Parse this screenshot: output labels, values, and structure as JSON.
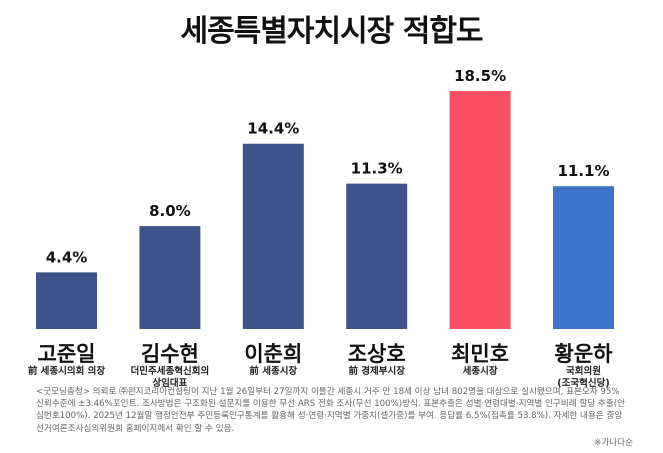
{
  "chart_data": {
    "type": "bar",
    "title": "세종특별자치시장 적합도",
    "categories": [
      "고준일",
      "김수현",
      "이춘희",
      "조상호",
      "최민호",
      "황운하"
    ],
    "subtitles": [
      "前 세종시의회 의장",
      "더민주세종혁신회의\n상임대표",
      "前 세종시장",
      "前 경제부시장",
      "세종시장",
      "국회의원\n(조국혁신당)"
    ],
    "values": [
      4.4,
      8.0,
      14.4,
      11.3,
      18.5,
      11.1
    ],
    "value_labels": [
      "4.4%",
      "8.0%",
      "14.4%",
      "11.3%",
      "18.5%",
      "11.1%"
    ],
    "colors": [
      "#3e5389",
      "#3e5389",
      "#3e5389",
      "#3e5389",
      "#f94f63",
      "#3d74c9"
    ],
    "ylim": [
      0,
      18.5
    ],
    "grid": false,
    "legend": "none"
  },
  "footnote": "<굿모닝충청> 의뢰로 ㈜윈지코리아컨설팅이 지난 1월 26일부터 27일까지 이틀간 세종시 거주 만 18세 이상 남녀 802명을 대상으로 실시됐으며, 표본오차 95% 신뢰수준에 ±3.46%포인트. 조사방법은 구조화된 설문지를 이용한 무선 ARS 전화 조사(무선 100%)방식. 표본추출은 성별·연령대별·지역별 인구비례 할당 추출(안심번호100%). 2025년 12월말 행정안전부 주민등록인구통계를 활용해 성·연령·지역별 가중치(셀가중)를 부여. 응답률 6.5%(접촉률 53.8%). 자세한 내용은 중앙선거여론조사심의위원회 홈페이지에서 확인 할 수 있음.",
  "source_note": "※가나다순"
}
